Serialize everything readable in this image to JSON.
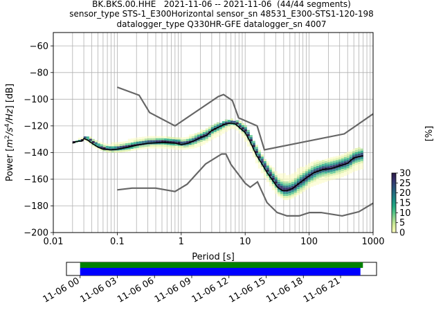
{
  "chart_data": {
    "type": "heatmap",
    "title_lines": [
      "BK.BKS.00.HHE   2021-11-06 -- 2021-11-06  (44/44 segments)",
      "sensor_type STS-1_E300Horizontal sensor_sn 48531_E300-STS1-120-198",
      "datalogger_type Q330HR-GFE datalogger_sn 4007"
    ],
    "xlabel": "Period [s]",
    "ylabel": "Power [m²/s⁴/Hz] [dB]",
    "ylabel_parts": {
      "a": "Power [",
      "m": "m",
      "p1": "2",
      "s1": "/s",
      "p2": "4",
      "s2": "/Hz",
      "b": "] [dB]"
    },
    "x_scale": "log",
    "xlim": [
      0.01,
      1000
    ],
    "ylim": [
      -200,
      -50
    ],
    "x_ticks": [
      0.01,
      0.1,
      1,
      10,
      100,
      1000
    ],
    "x_tick_labels": [
      "0.01",
      "0.1",
      "1",
      "10",
      "100",
      "1000"
    ],
    "y_ticks": [
      -200,
      -180,
      -160,
      -140,
      -120,
      -100,
      -80,
      -60
    ],
    "y_tick_labels": [
      "−200",
      "−180",
      "−160",
      "−140",
      "−120",
      "−100",
      "−80",
      "−60"
    ],
    "grid": true,
    "noise_models": [
      {
        "name": "NHNM",
        "points": [
          [
            0.1,
            -91
          ],
          [
            0.22,
            -97
          ],
          [
            0.32,
            -110
          ],
          [
            0.8,
            -120
          ],
          [
            3.8,
            -98
          ],
          [
            4.6,
            -96.5
          ],
          [
            6.3,
            -101
          ],
          [
            7.9,
            -114
          ],
          [
            15.4,
            -120
          ],
          [
            20,
            -138
          ],
          [
            354.8,
            -126
          ],
          [
            1000,
            -111
          ]
        ]
      },
      {
        "name": "NLNM",
        "points": [
          [
            0.1,
            -168
          ],
          [
            0.17,
            -166.7
          ],
          [
            0.4,
            -166.7
          ],
          [
            0.8,
            -169.2
          ],
          [
            1.24,
            -163.7
          ],
          [
            2.4,
            -148.6
          ],
          [
            4.3,
            -141.1
          ],
          [
            5,
            -141.1
          ],
          [
            6,
            -149
          ],
          [
            10,
            -163
          ],
          [
            12,
            -166
          ],
          [
            15.6,
            -162
          ],
          [
            21.9,
            -177.5
          ],
          [
            31.6,
            -185
          ],
          [
            45,
            -187.5
          ],
          [
            70,
            -187.5
          ],
          [
            101,
            -185
          ],
          [
            154,
            -185
          ],
          [
            328,
            -187.5
          ],
          [
            600,
            -184.4
          ],
          [
            1000,
            -178
          ]
        ]
      }
    ],
    "mean_curve": [
      [
        0.02,
        -133
      ],
      [
        0.022,
        -132
      ],
      [
        0.025,
        -131.5
      ],
      [
        0.028,
        -131.5
      ],
      [
        0.03,
        -129.5
      ],
      [
        0.034,
        -130.5
      ],
      [
        0.04,
        -133
      ],
      [
        0.05,
        -136
      ],
      [
        0.06,
        -137.5
      ],
      [
        0.08,
        -138
      ],
      [
        0.1,
        -137.5
      ],
      [
        0.15,
        -136
      ],
      [
        0.2,
        -134.5
      ],
      [
        0.3,
        -133
      ],
      [
        0.5,
        -132.5
      ],
      [
        0.8,
        -133
      ],
      [
        1,
        -134
      ],
      [
        1.3,
        -133
      ],
      [
        1.6,
        -131
      ],
      [
        2,
        -129
      ],
      [
        2.5,
        -127
      ],
      [
        3,
        -123.5
      ],
      [
        4,
        -120.5
      ],
      [
        5,
        -118.5
      ],
      [
        6,
        -118
      ],
      [
        7,
        -118.5
      ],
      [
        8,
        -121
      ],
      [
        10,
        -125
      ],
      [
        12,
        -132
      ],
      [
        15,
        -142
      ],
      [
        18,
        -148
      ],
      [
        22,
        -155
      ],
      [
        27,
        -161
      ],
      [
        32,
        -166
      ],
      [
        38,
        -168.5
      ],
      [
        45,
        -168.5
      ],
      [
        55,
        -167
      ],
      [
        70,
        -163
      ],
      [
        90,
        -159
      ],
      [
        120,
        -155
      ],
      [
        160,
        -153
      ],
      [
        220,
        -152
      ],
      [
        300,
        -150
      ],
      [
        400,
        -148
      ],
      [
        500,
        -144
      ],
      [
        600,
        -143
      ],
      [
        700,
        -142.5
      ]
    ],
    "density_band": [
      [
        0.02,
        -133,
        -132
      ],
      [
        0.03,
        -131,
        -128
      ],
      [
        0.04,
        -136,
        -130
      ],
      [
        0.05,
        -138,
        -133
      ],
      [
        0.07,
        -140,
        -134
      ],
      [
        0.1,
        -140,
        -133
      ],
      [
        0.15,
        -139,
        -131
      ],
      [
        0.2,
        -138,
        -130
      ],
      [
        0.3,
        -137,
        -129
      ],
      [
        0.5,
        -137,
        -129
      ],
      [
        0.8,
        -138,
        -129
      ],
      [
        1,
        -138,
        -130
      ],
      [
        1.5,
        -137,
        -127
      ],
      [
        2,
        -135,
        -124
      ],
      [
        3,
        -130,
        -120
      ],
      [
        4,
        -127,
        -118
      ],
      [
        5,
        -124,
        -116
      ],
      [
        6,
        -122,
        -116
      ],
      [
        7,
        -123,
        -117
      ],
      [
        8,
        -126,
        -118
      ],
      [
        10,
        -133,
        -121
      ],
      [
        12,
        -140,
        -128
      ],
      [
        15,
        -150,
        -137
      ],
      [
        20,
        -160,
        -146
      ],
      [
        25,
        -167,
        -151
      ],
      [
        30,
        -172,
        -156
      ],
      [
        40,
        -176,
        -157
      ],
      [
        50,
        -175,
        -157
      ],
      [
        70,
        -171,
        -152
      ],
      [
        100,
        -166,
        -148
      ],
      [
        150,
        -163,
        -146
      ],
      [
        200,
        -161,
        -144
      ],
      [
        300,
        -159,
        -142
      ],
      [
        500,
        -154,
        -138
      ],
      [
        700,
        -152,
        -137
      ]
    ],
    "colorbar": {
      "label": "[%]",
      "ticks": [
        0,
        5,
        10,
        15,
        20,
        25,
        30
      ],
      "tick_labels": [
        "0",
        "5",
        "10",
        "15",
        "20",
        "25",
        "30"
      ],
      "range": [
        0,
        30
      ],
      "colormap": [
        "#fbfcbf",
        "#d9ef9b",
        "#9fd98f",
        "#55c487",
        "#21a882",
        "#1b8a84",
        "#226b7f",
        "#2c4d78",
        "#35306a",
        "#2a1a45"
      ]
    },
    "timeline": {
      "ticks": [
        "11-06 00",
        "11-06 03",
        "11-06 06",
        "11-06 09",
        "11-06 12",
        "11-06 15",
        "11-06 18",
        "11-06 21"
      ],
      "tick_hours": [
        0,
        3,
        6,
        9,
        12,
        15,
        18,
        21
      ],
      "xlim_hours": [
        -1.1,
        23.9
      ],
      "green_bar_hours": [
        0,
        22.8
      ],
      "blue_bar_hours": [
        0,
        22.6
      ],
      "green_color": "#008000",
      "blue_color": "#0000ff"
    },
    "colors": {
      "noise_model": "#666666",
      "mean": "#000000",
      "grid": "#b0b0b0"
    }
  }
}
